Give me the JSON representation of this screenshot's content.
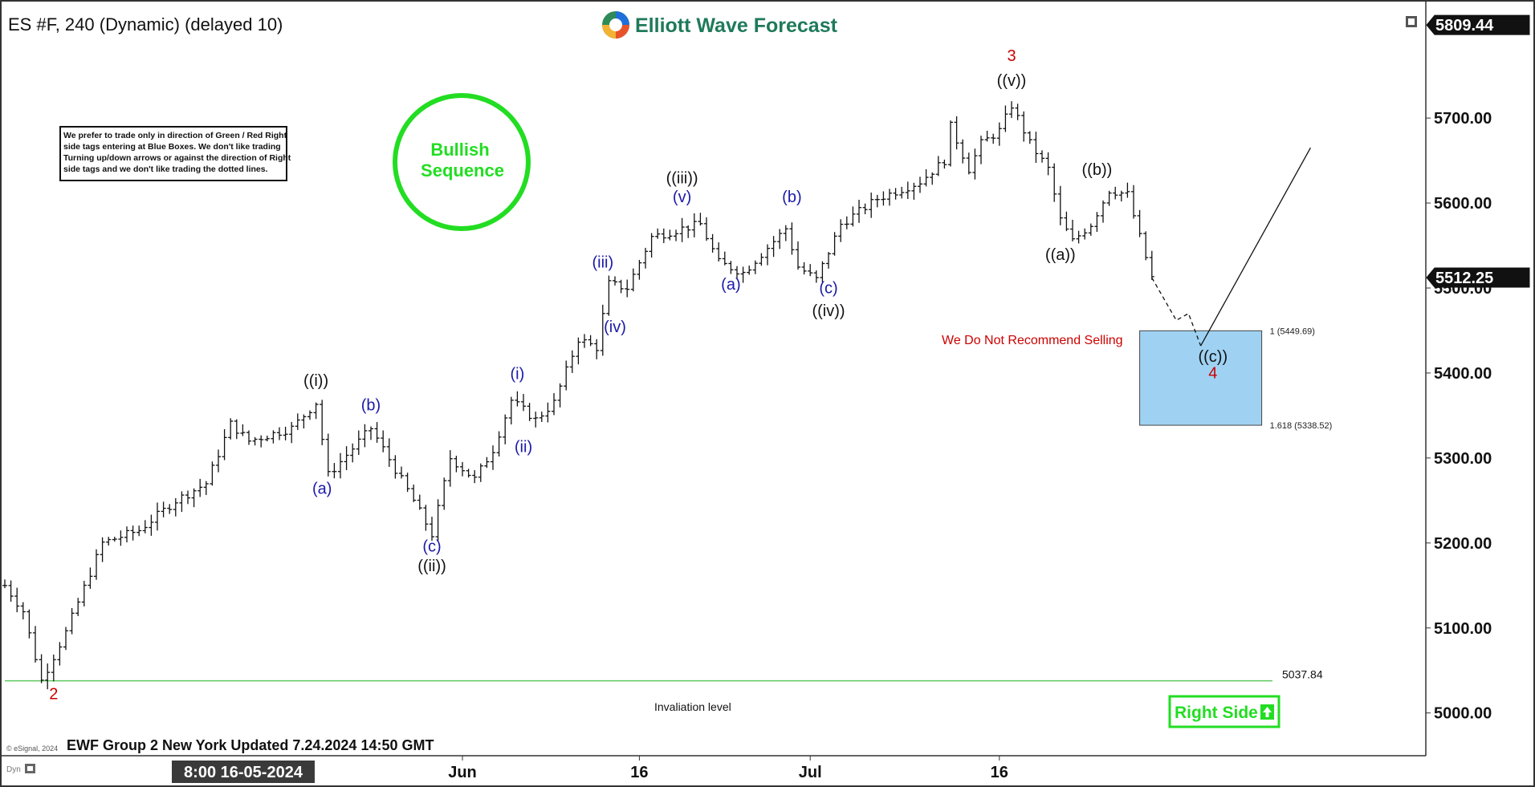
{
  "header": {
    "symbol_title": "ES #F, 240 (Dynamic) (delayed 10)",
    "brand": "Elliott Wave Forecast",
    "footer": "EWF Group 2 New York Updated 7.24.2024 14:50 GMT",
    "copyright": "© eSignal, 2024",
    "dyn": "Dyn"
  },
  "notes": {
    "disclaimer_lines": [
      "We prefer to trade only in direction of Green / Red Right",
      "side tags entering at Blue Boxes. We don't like trading",
      "Turning up/down arrows or against the direction of Right",
      "side tags and we don't like trading the dotted lines."
    ],
    "bullish_lines": [
      "Bullish",
      "Sequence"
    ],
    "no_sell": "We Do Not Recommend Selling",
    "invalidation": "Invaliation level",
    "right_side": "Right Side"
  },
  "colors": {
    "wave_black": "#111111",
    "wave_blue": "#1a1aa8",
    "wave_red": "#cc0000",
    "green": "#22dd22",
    "blue_box": "#9fd2f2",
    "invalidation_line": "#5ec95e"
  },
  "chart_data": {
    "type": "ohlc",
    "ylim": [
      4978,
      5820
    ],
    "yticks": [
      5000,
      5100,
      5200,
      5300,
      5400,
      5500,
      5600,
      5700
    ],
    "ytick_labels": [
      "5000.00",
      "5100.00",
      "5200.00",
      "5300.00",
      "5400.00",
      "5500.00",
      "5600.00",
      "5700.00"
    ],
    "price_tags": [
      {
        "label": "5809.44",
        "value": 5809.44
      },
      {
        "label": "5512.25",
        "value": 5512.25
      }
    ],
    "xaxis_start_label": "8:00 16-05-2024",
    "xaxis_labels": [
      {
        "label": "Jun",
        "bar": 75
      },
      {
        "label": "16",
        "bar": 104
      },
      {
        "label": "Jul",
        "bar": 132
      },
      {
        "label": "16",
        "bar": 163
      }
    ],
    "price_path": [
      {
        "bar": 0,
        "price": 5150
      },
      {
        "bar": 3,
        "price": 5120
      },
      {
        "bar": 6,
        "price": 5038
      },
      {
        "bar": 10,
        "price": 5095
      },
      {
        "bar": 16,
        "price": 5200
      },
      {
        "bar": 22,
        "price": 5215
      },
      {
        "bar": 28,
        "price": 5250
      },
      {
        "bar": 33,
        "price": 5270
      },
      {
        "bar": 37,
        "price": 5340
      },
      {
        "bar": 40,
        "price": 5320
      },
      {
        "bar": 47,
        "price": 5335
      },
      {
        "bar": 51,
        "price": 5365
      },
      {
        "bar": 53,
        "price": 5280
      },
      {
        "bar": 60,
        "price": 5335
      },
      {
        "bar": 67,
        "price": 5250
      },
      {
        "bar": 70,
        "price": 5210
      },
      {
        "bar": 73,
        "price": 5300
      },
      {
        "bar": 77,
        "price": 5275
      },
      {
        "bar": 80,
        "price": 5310
      },
      {
        "bar": 83,
        "price": 5368
      },
      {
        "bar": 87,
        "price": 5345
      },
      {
        "bar": 90,
        "price": 5365
      },
      {
        "bar": 94,
        "price": 5440
      },
      {
        "bar": 97,
        "price": 5430
      },
      {
        "bar": 99,
        "price": 5505
      },
      {
        "bar": 102,
        "price": 5500
      },
      {
        "bar": 106,
        "price": 5560
      },
      {
        "bar": 111,
        "price": 5570
      },
      {
        "bar": 114,
        "price": 5575
      },
      {
        "bar": 117,
        "price": 5530
      },
      {
        "bar": 121,
        "price": 5518
      },
      {
        "bar": 124,
        "price": 5540
      },
      {
        "bar": 128,
        "price": 5570
      },
      {
        "bar": 130,
        "price": 5525
      },
      {
        "bar": 133,
        "price": 5510
      },
      {
        "bar": 137,
        "price": 5575
      },
      {
        "bar": 143,
        "price": 5605
      },
      {
        "bar": 150,
        "price": 5625
      },
      {
        "bar": 154,
        "price": 5650
      },
      {
        "bar": 155,
        "price": 5690
      },
      {
        "bar": 158,
        "price": 5640
      },
      {
        "bar": 160,
        "price": 5670
      },
      {
        "bar": 163,
        "price": 5685
      },
      {
        "bar": 165,
        "price": 5715
      },
      {
        "bar": 168,
        "price": 5670
      },
      {
        "bar": 171,
        "price": 5640
      },
      {
        "bar": 173,
        "price": 5580
      },
      {
        "bar": 175,
        "price": 5555
      },
      {
        "bar": 178,
        "price": 5575
      },
      {
        "bar": 181,
        "price": 5615
      },
      {
        "bar": 184,
        "price": 5610
      },
      {
        "bar": 186,
        "price": 5560
      },
      {
        "bar": 188,
        "price": 5512
      }
    ],
    "projection_dashed": [
      {
        "bar": 188,
        "price": 5512
      },
      {
        "bar": 192,
        "price": 5462
      },
      {
        "bar": 194,
        "price": 5470
      },
      {
        "bar": 196,
        "price": 5432
      }
    ],
    "projection_solid": [
      {
        "bar": 196,
        "price": 5432
      },
      {
        "bar": 214,
        "price": 5665
      }
    ],
    "blue_box": {
      "bar_start": 186,
      "bar_end": 206,
      "top": 5449.69,
      "bottom": 5338.52
    },
    "fib_levels": [
      {
        "label": "1 (5449.69)",
        "value": 5449.69
      },
      {
        "label": "1.618 (5338.52)",
        "value": 5338.52
      }
    ],
    "invalidation_level": {
      "value": 5037.84,
      "label": "5037.84"
    },
    "wave_labels": [
      {
        "text": "2",
        "bar": 8,
        "price": 5016,
        "color": "red"
      },
      {
        "text": "((i))",
        "bar": 51,
        "price": 5385,
        "color": "black"
      },
      {
        "text": "(a)",
        "bar": 52,
        "price": 5258,
        "color": "blue"
      },
      {
        "text": "(b)",
        "bar": 60,
        "price": 5356,
        "color": "blue"
      },
      {
        "text": "(c)",
        "bar": 70,
        "price": 5190,
        "color": "blue"
      },
      {
        "text": "((ii))",
        "bar": 70,
        "price": 5167,
        "color": "black"
      },
      {
        "text": "(i)",
        "bar": 84,
        "price": 5393,
        "color": "blue"
      },
      {
        "text": "(ii)",
        "bar": 85,
        "price": 5307,
        "color": "blue"
      },
      {
        "text": "(iii)",
        "bar": 98,
        "price": 5524,
        "color": "blue"
      },
      {
        "text": "(iv)",
        "bar": 100,
        "price": 5448,
        "color": "blue"
      },
      {
        "text": "((iii))",
        "bar": 111,
        "price": 5623,
        "color": "black"
      },
      {
        "text": "(v)",
        "bar": 111,
        "price": 5601,
        "color": "blue"
      },
      {
        "text": "(a)",
        "bar": 119,
        "price": 5498,
        "color": "blue"
      },
      {
        "text": "(b)",
        "bar": 129,
        "price": 5601,
        "color": "blue"
      },
      {
        "text": "(c)",
        "bar": 135,
        "price": 5494,
        "color": "blue"
      },
      {
        "text": "((iv))",
        "bar": 135,
        "price": 5467,
        "color": "black"
      },
      {
        "text": "3",
        "bar": 165,
        "price": 5767,
        "color": "red"
      },
      {
        "text": "((v))",
        "bar": 165,
        "price": 5738,
        "color": "black"
      },
      {
        "text": "((a))",
        "bar": 173,
        "price": 5533,
        "color": "black"
      },
      {
        "text": "((b))",
        "bar": 179,
        "price": 5633,
        "color": "black"
      },
      {
        "text": "((c))",
        "bar": 198,
        "price": 5413,
        "color": "black"
      },
      {
        "text": "4",
        "bar": 198,
        "price": 5394,
        "color": "red"
      }
    ]
  }
}
